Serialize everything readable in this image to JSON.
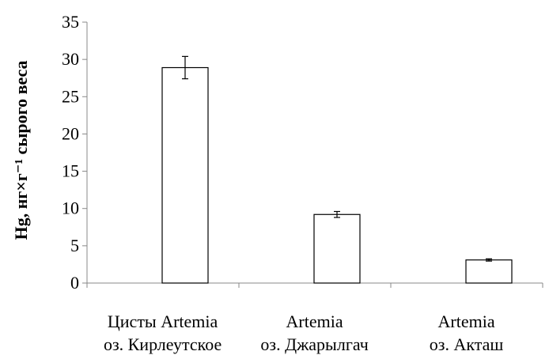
{
  "chart_data": {
    "type": "bar",
    "ylabel": "Hg, нг×г⁻¹ сырого веса",
    "ylim": [
      0,
      35
    ],
    "yticks": [
      0,
      5,
      10,
      15,
      20,
      25,
      30,
      35
    ],
    "grid": false,
    "legend": "none",
    "bar_fill": "#ffffff",
    "bar_stroke": "#000000",
    "categories": [
      {
        "line1": "Цисты  Artemia",
        "line2": "оз. Кирлеутское"
      },
      {
        "line1": "Artemia",
        "line2": "оз. Джарылгач"
      },
      {
        "line1": "Artemia",
        "line2": "оз. Акташ"
      }
    ],
    "values": [
      28.9,
      9.2,
      3.1
    ],
    "errors": [
      1.5,
      0.4,
      0.15
    ]
  }
}
